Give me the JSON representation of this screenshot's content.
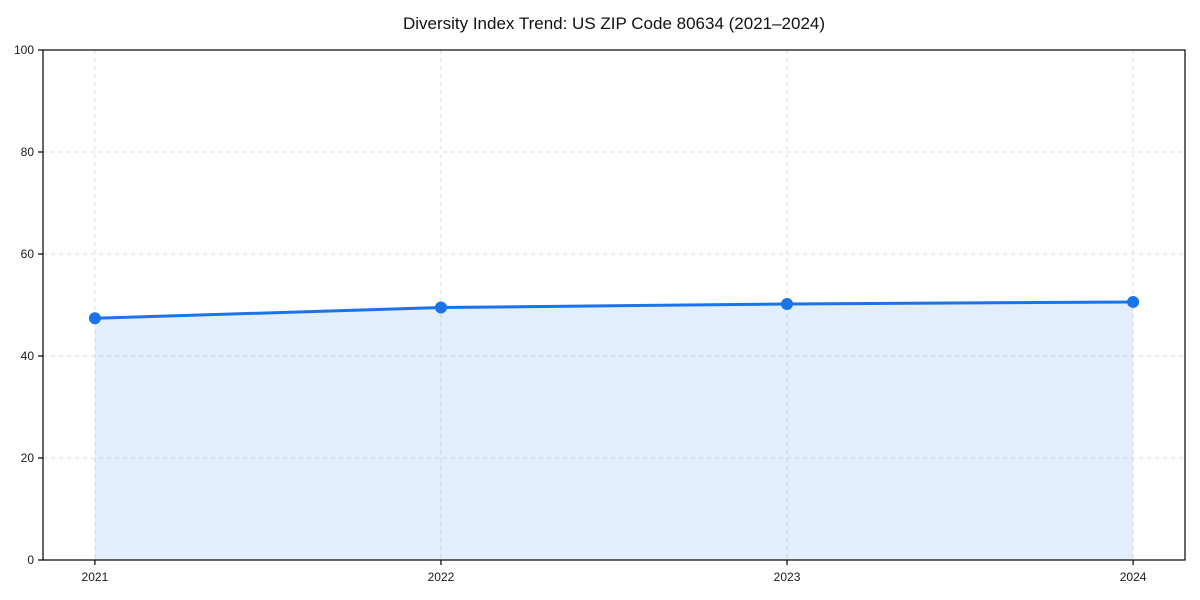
{
  "chart_data": {
    "type": "area",
    "title": "Diversity Index Trend: US ZIP Code 80634 (2021–2024)",
    "categories": [
      "2021",
      "2022",
      "2023",
      "2024"
    ],
    "values": [
      47.4,
      49.5,
      50.2,
      50.6
    ],
    "xlabel": "",
    "ylabel": "",
    "ylim": [
      0,
      100
    ],
    "yticks": [
      0,
      20,
      40,
      60,
      80,
      100
    ],
    "grid": "dashed-both-axes",
    "legend": "none",
    "colors": {
      "line": "#1a73e8",
      "marker": "#1a73e8",
      "fill": "#1a73e8",
      "fill_opacity": 0.12,
      "grid": "#dcdcdc",
      "axis": "#000000",
      "tick_label": "#1a1a1a",
      "title": "#111111",
      "background": "#ffffff"
    }
  }
}
